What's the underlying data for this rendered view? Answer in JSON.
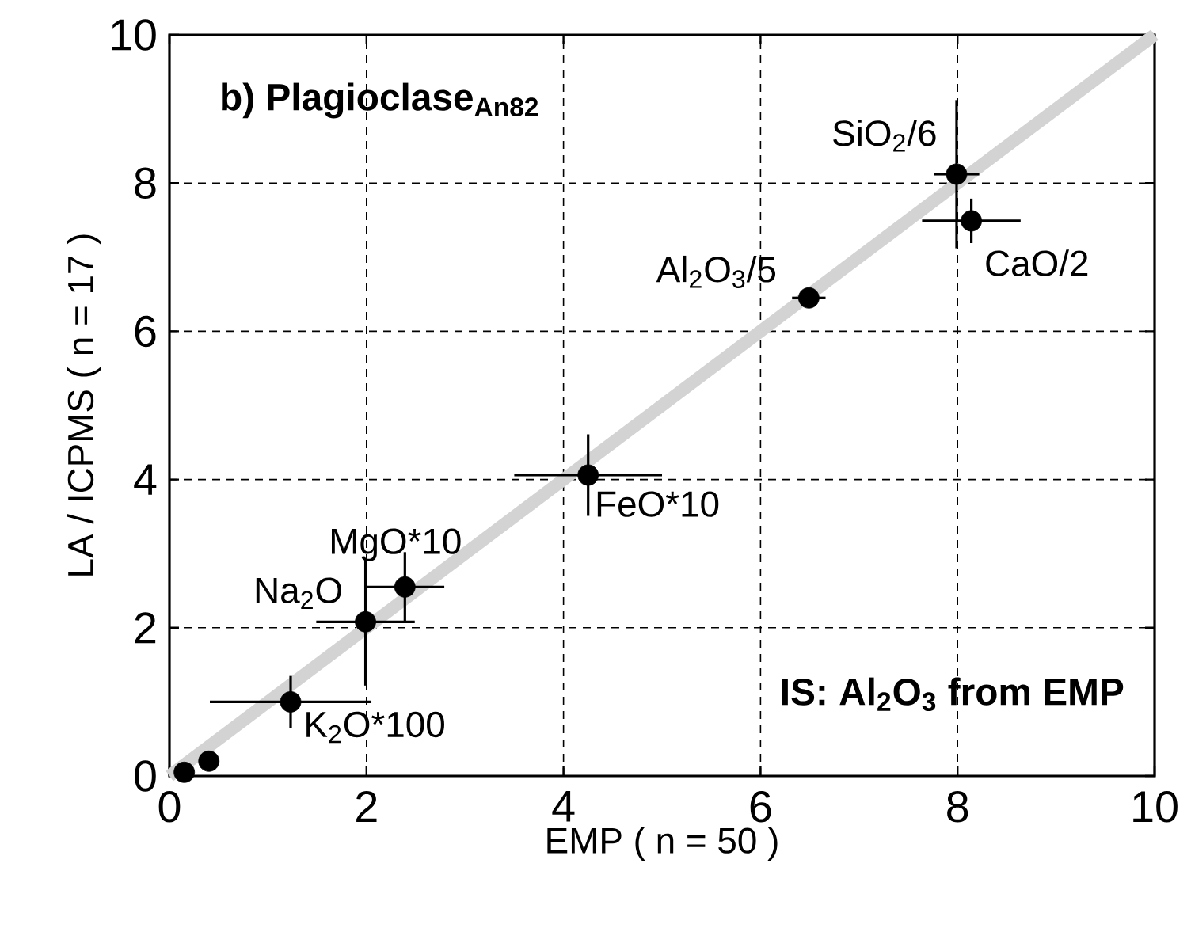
{
  "chart_data": {
    "type": "scatter",
    "title": "b) Plagioclase$_{An82}$",
    "xlabel": "EMP ( n = 50 )",
    "ylabel": "LA / ICPMS ( n = 17 )",
    "xlim": [
      0,
      10
    ],
    "ylim": [
      0,
      10
    ],
    "xticks": [
      0,
      2,
      4,
      6,
      8,
      10
    ],
    "yticks": [
      0,
      2,
      4,
      6,
      8,
      10
    ],
    "grid": true,
    "series": [
      {
        "type": "line",
        "marker": "none",
        "color": "#d3d3d3",
        "x": [
          0,
          10
        ],
        "values": [
          0,
          10
        ]
      },
      {
        "type": "scatter",
        "marker": "circle",
        "color": "#000000",
        "x": [
          0.15,
          0.4,
          1.23,
          1.99,
          2.39,
          4.25,
          6.49,
          7.99,
          8.14
        ],
        "values": [
          0.05,
          0.2,
          1.0,
          2.08,
          2.55,
          4.06,
          6.45,
          8.12,
          7.49
        ],
        "xerrors": [
          null,
          null,
          0.82,
          0.5,
          0.4,
          0.75,
          0.17,
          0.23,
          0.5
        ],
        "errors": [
          null,
          null,
          0.35,
          0.86,
          0.47,
          0.55,
          null,
          1.0,
          0.3
        ]
      }
    ],
    "annotations": [
      {
        "text": "K$_{2}$O*100",
        "x": 1.23,
        "y": 1.0
      },
      {
        "text": "Na$_{2}$O",
        "x": 1.99,
        "y": 2.08
      },
      {
        "text": "MgO*10",
        "x": 2.39,
        "y": 2.55
      },
      {
        "text": "FeO*10",
        "x": 4.25,
        "y": 4.06
      },
      {
        "text": "Al$_{2}$O$_{3}$/5",
        "x": 6.49,
        "y": 6.45
      },
      {
        "text": "SiO$_{2}$/6",
        "x": 7.99,
        "y": 8.12
      },
      {
        "text": "CaO/2",
        "x": 8.14,
        "y": 7.49
      },
      "IS: Al$_{2}$O$_{3}$ from EMP"
    ]
  }
}
